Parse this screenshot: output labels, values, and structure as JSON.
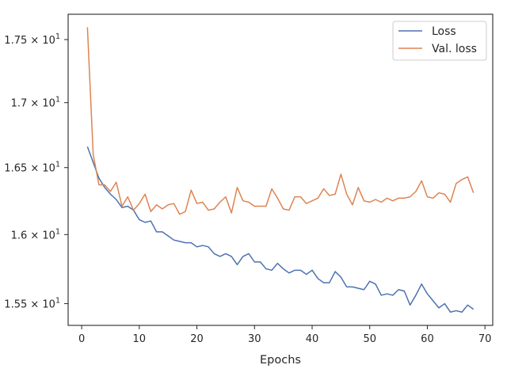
{
  "chart_data": {
    "type": "line",
    "title": "",
    "xlabel": "Epochs",
    "ylabel": "",
    "xlim": [
      -2.35,
      71.35
    ],
    "ylim": [
      15.346,
      17.705
    ],
    "y_scale": "log",
    "grid": false,
    "legend_position": "top-right",
    "x_ticks": [
      {
        "value": 0,
        "label": "0"
      },
      {
        "value": 10,
        "label": "10"
      },
      {
        "value": 20,
        "label": "20"
      },
      {
        "value": 30,
        "label": "30"
      },
      {
        "value": 40,
        "label": "40"
      },
      {
        "value": 50,
        "label": "50"
      },
      {
        "value": 60,
        "label": "60"
      },
      {
        "value": 70,
        "label": "70"
      }
    ],
    "y_ticks": [
      {
        "value": 15.5,
        "mantissa": "1.55",
        "exponent": "1"
      },
      {
        "value": 16.0,
        "mantissa": "1.6",
        "exponent": "1"
      },
      {
        "value": 16.5,
        "mantissa": "1.65",
        "exponent": "1"
      },
      {
        "value": 17.0,
        "mantissa": "1.7",
        "exponent": "1"
      },
      {
        "value": 17.5,
        "mantissa": "1.75",
        "exponent": "1"
      }
    ],
    "x": [
      1,
      2,
      3,
      4,
      5,
      6,
      7,
      8,
      9,
      10,
      11,
      12,
      13,
      14,
      15,
      16,
      17,
      18,
      19,
      20,
      21,
      22,
      23,
      24,
      25,
      26,
      27,
      28,
      29,
      30,
      31,
      32,
      33,
      34,
      35,
      36,
      37,
      38,
      39,
      40,
      41,
      42,
      43,
      44,
      45,
      46,
      47,
      48,
      49,
      50,
      51,
      52,
      53,
      54,
      55,
      56,
      57,
      58,
      59,
      60,
      61,
      62,
      63,
      64,
      65,
      66,
      67,
      68
    ],
    "series": [
      {
        "name": "Loss",
        "color": "#4c72b0",
        "values": [
          16.66,
          16.54,
          16.42,
          16.35,
          16.3,
          16.26,
          16.2,
          16.21,
          16.18,
          16.11,
          16.09,
          16.1,
          16.02,
          16.02,
          15.99,
          15.96,
          15.95,
          15.94,
          15.94,
          15.91,
          15.92,
          15.91,
          15.86,
          15.84,
          15.86,
          15.84,
          15.78,
          15.84,
          15.86,
          15.8,
          15.8,
          15.75,
          15.74,
          15.79,
          15.75,
          15.72,
          15.74,
          15.74,
          15.71,
          15.74,
          15.68,
          15.65,
          15.65,
          15.73,
          15.69,
          15.62,
          15.62,
          15.61,
          15.6,
          15.66,
          15.64,
          15.56,
          15.57,
          15.56,
          15.6,
          15.59,
          15.49,
          15.56,
          15.64,
          15.57,
          15.52,
          15.47,
          15.5,
          15.44,
          15.45,
          15.44,
          15.49,
          15.46
        ]
      },
      {
        "name": "Val. loss",
        "color": "#dd8452",
        "values": [
          17.6,
          16.6,
          16.37,
          16.37,
          16.32,
          16.39,
          16.21,
          16.28,
          16.18,
          16.23,
          16.3,
          16.17,
          16.22,
          16.19,
          16.22,
          16.23,
          16.15,
          16.17,
          16.33,
          16.23,
          16.24,
          16.18,
          16.19,
          16.24,
          16.28,
          16.16,
          16.35,
          16.25,
          16.24,
          16.21,
          16.21,
          16.21,
          16.34,
          16.27,
          16.19,
          16.18,
          16.28,
          16.28,
          16.23,
          16.25,
          16.27,
          16.34,
          16.29,
          16.3,
          16.45,
          16.3,
          16.22,
          16.35,
          16.25,
          16.24,
          16.26,
          16.24,
          16.27,
          16.25,
          16.27,
          16.27,
          16.28,
          16.32,
          16.4,
          16.28,
          16.27,
          16.31,
          16.3,
          16.24,
          16.38,
          16.41,
          16.43,
          16.31
        ]
      }
    ]
  }
}
